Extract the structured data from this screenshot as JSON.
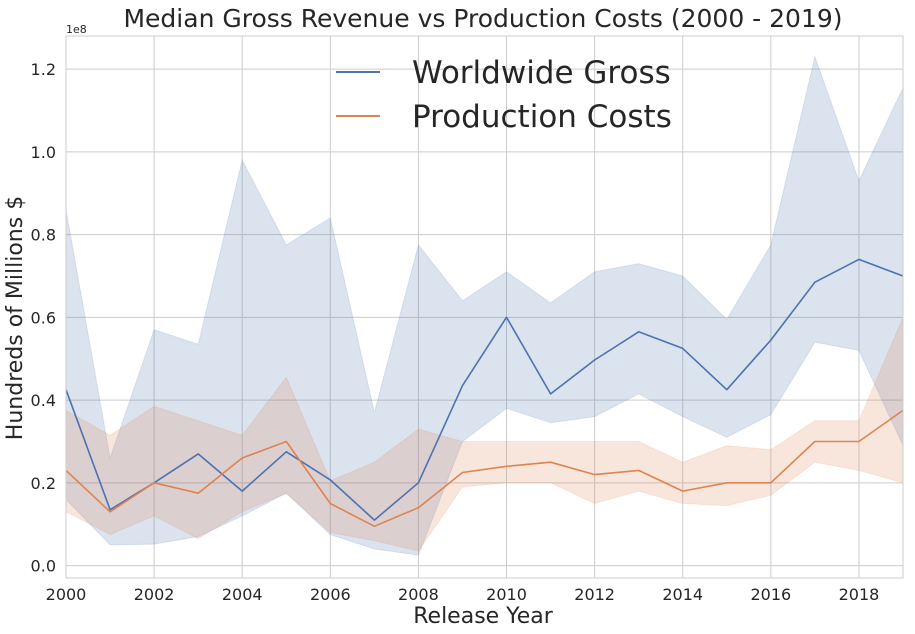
{
  "chart_data": {
    "type": "line",
    "title": "Median Gross Revenue vs Production Costs (2000 - 2019)",
    "xlabel": "Release Year",
    "ylabel": "Hundreds of Millions $",
    "y_offset_label": "1e8",
    "xlim": [
      2000,
      2019
    ],
    "ylim": [
      -3000000,
      128000000
    ],
    "xticks": [
      2000,
      2002,
      2004,
      2006,
      2008,
      2010,
      2012,
      2014,
      2016,
      2018
    ],
    "xtick_labels": [
      "2000",
      "2002",
      "2004",
      "2006",
      "2008",
      "2010",
      "2012",
      "2014",
      "2016",
      "2018"
    ],
    "yticks": [
      0,
      20000000,
      40000000,
      60000000,
      80000000,
      100000000,
      120000000
    ],
    "ytick_labels": [
      "0.0",
      "0.2",
      "0.4",
      "0.6",
      "0.8",
      "1.0",
      "1.2"
    ],
    "grid": true,
    "legend_position": "top-center",
    "x": [
      2000,
      2001,
      2002,
      2003,
      2004,
      2005,
      2006,
      2007,
      2008,
      2009,
      2010,
      2011,
      2012,
      2013,
      2014,
      2015,
      2016,
      2017,
      2018,
      2019
    ],
    "series": [
      {
        "name": "Worldwide Gross",
        "color": "#4c72b0",
        "values": [
          42500000,
          13500000,
          20000000,
          27000000,
          18000000,
          27500000,
          20700000,
          11000000,
          20000000,
          43500000,
          60000000,
          41500000,
          49700000,
          56500000,
          52500000,
          42500000,
          54500000,
          68500000,
          74000000,
          70000000
        ],
        "ci_lower": [
          16000000,
          5000000,
          5200000,
          7000000,
          12000000,
          17500000,
          7500000,
          4000000,
          2500000,
          30000000,
          38000000,
          34500000,
          36000000,
          41500000,
          36000000,
          31000000,
          36500000,
          54000000,
          52000000,
          29000000
        ],
        "ci_upper": [
          86000000,
          26000000,
          57000000,
          53500000,
          98000000,
          77500000,
          84000000,
          37000000,
          77500000,
          64000000,
          71000000,
          63500000,
          71000000,
          73000000,
          70000000,
          59500000,
          77500000,
          123000000,
          93000000,
          115500000
        ]
      },
      {
        "name": "Production Costs",
        "color": "#dd8452",
        "values": [
          23000000,
          13000000,
          20000000,
          17500000,
          26000000,
          30000000,
          15000000,
          9500000,
          14000000,
          22500000,
          24000000,
          25000000,
          22000000,
          23000000,
          18000000,
          20000000,
          20000000,
          30000000,
          30000000,
          37500000
        ],
        "ci_lower": [
          13000000,
          7500000,
          12000000,
          6500000,
          13000000,
          17500000,
          8000000,
          6000000,
          3500000,
          19000000,
          20000000,
          20000000,
          15000000,
          18000000,
          15000000,
          14500000,
          17000000,
          25000000,
          23000000,
          20000000
        ],
        "ci_upper": [
          37500000,
          31500000,
          38500000,
          35000000,
          31500000,
          45500000,
          20500000,
          25000000,
          33000000,
          30000000,
          30000000,
          30000000,
          30000000,
          30000000,
          25000000,
          29000000,
          28000000,
          35000000,
          35000000,
          60000000
        ]
      }
    ]
  }
}
